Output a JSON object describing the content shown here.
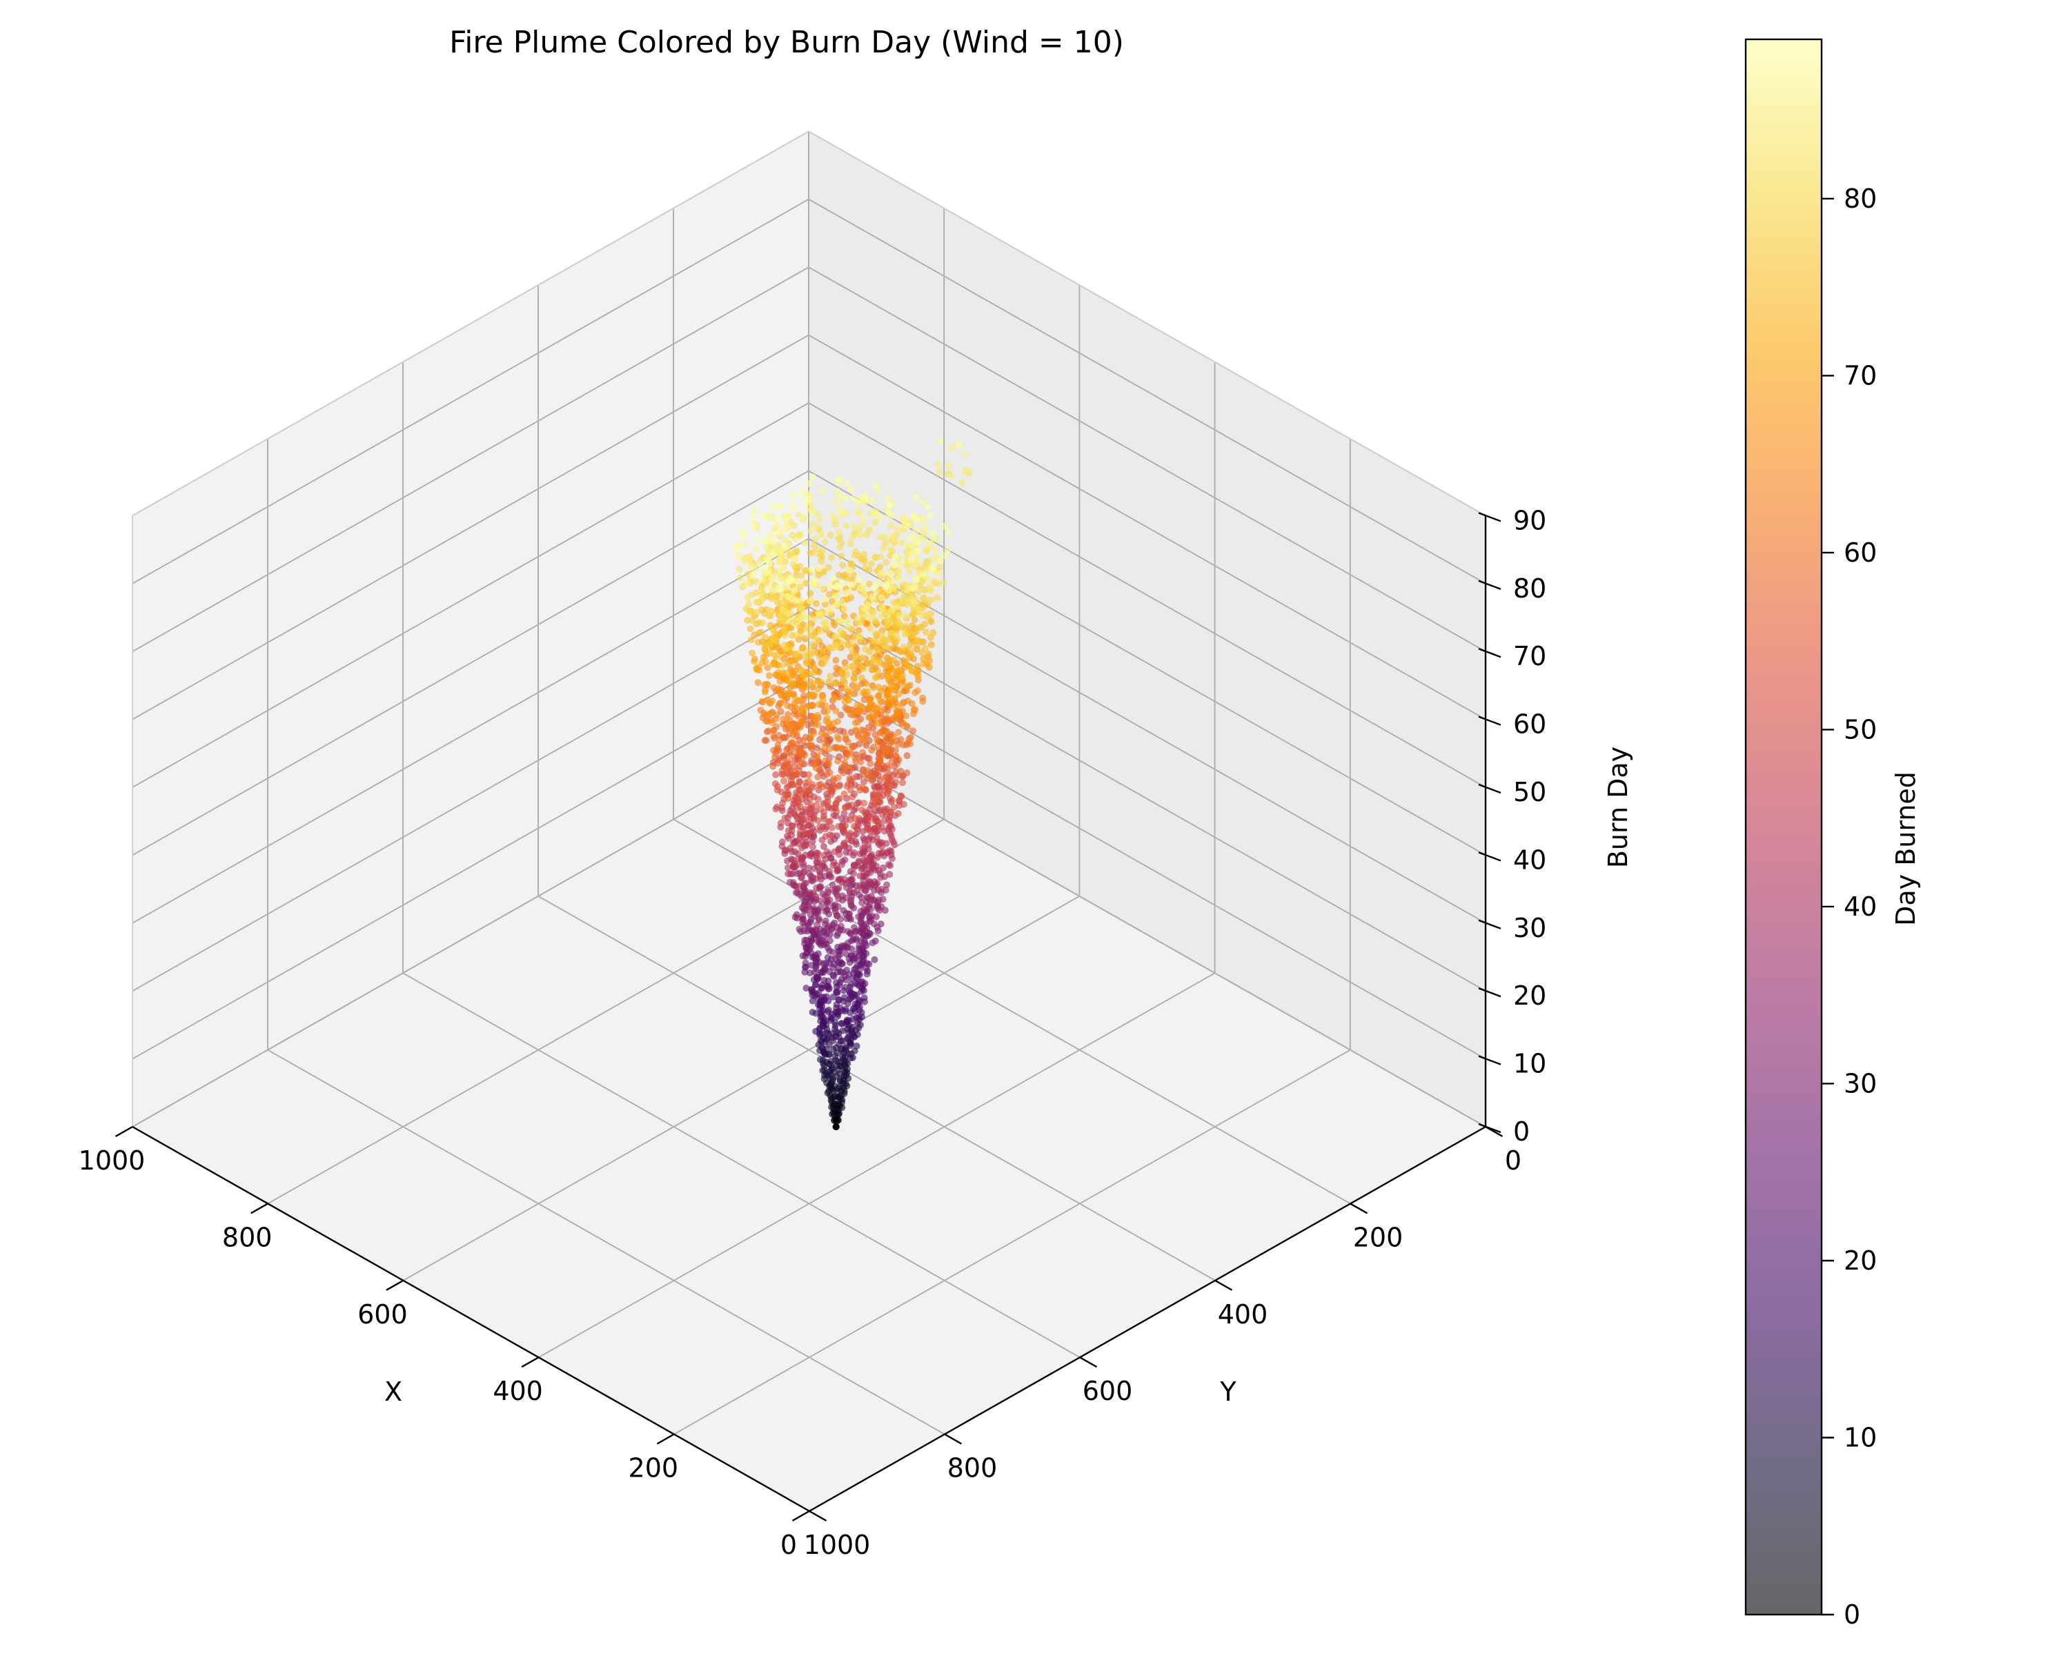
{
  "chart_data": {
    "type": "scatter",
    "projection": "3d",
    "title": "Fire Plume Colored by Burn Day (Wind = 10)",
    "xlabel": "X",
    "ylabel": "Y",
    "zlabel": "Burn Day",
    "xlim": [
      0,
      1000
    ],
    "ylim": [
      0,
      1000
    ],
    "zlim": [
      0,
      90
    ],
    "xticks": [
      "0",
      "200",
      "400",
      "600",
      "800",
      "1000"
    ],
    "yticks": [
      "0",
      "200",
      "400",
      "600",
      "800",
      "1000"
    ],
    "zticks": [
      "0",
      "10",
      "20",
      "30",
      "40",
      "50",
      "60",
      "70",
      "80",
      "90"
    ],
    "grid": true,
    "colormap": "inferno",
    "alpha": 0.6,
    "colorbar": {
      "label": "Day Burned",
      "range": [
        0,
        89
      ],
      "ticks": [
        "0",
        "10",
        "20",
        "30",
        "40",
        "50",
        "60",
        "70",
        "80"
      ]
    },
    "plume": {
      "ignition": [
        480,
        480,
        0
      ],
      "wind": 10,
      "radius_at_top": 115,
      "max_day": 89
    }
  }
}
